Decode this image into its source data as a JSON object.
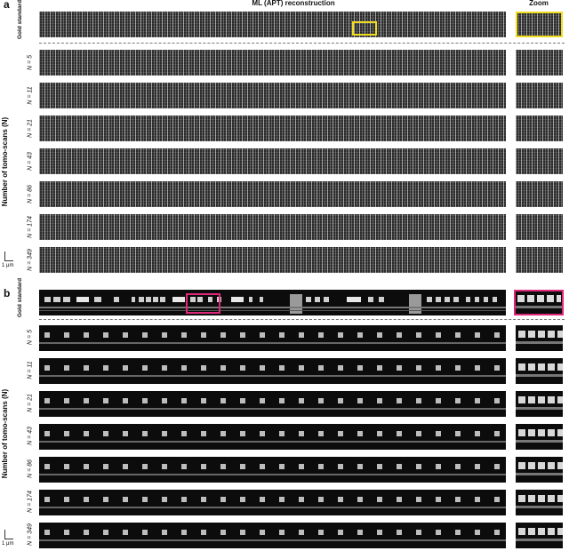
{
  "panel_a": {
    "letter": "a",
    "header_main": "ML (APT) reconstruction",
    "header_zoom": "Zoom",
    "gold_label": "Gold standard",
    "axis_label": "Number of tomo-scans (N)",
    "rows": [
      "N = 5",
      "N = 11",
      "N = 21",
      "N = 43",
      "N = 86",
      "N = 174",
      "N = 349"
    ],
    "scale": "1 μm",
    "highlight_color": "#f0dc1e"
  },
  "panel_b": {
    "letter": "b",
    "gold_label": "Gold standard",
    "axis_label": "Number of tomo-scans (N)",
    "rows": [
      "N = 5",
      "N = 11",
      "N = 21",
      "N = 43",
      "N = 86",
      "N = 174",
      "N = 349"
    ],
    "scale": "1 μm",
    "highlight_color": "#e0287a"
  }
}
